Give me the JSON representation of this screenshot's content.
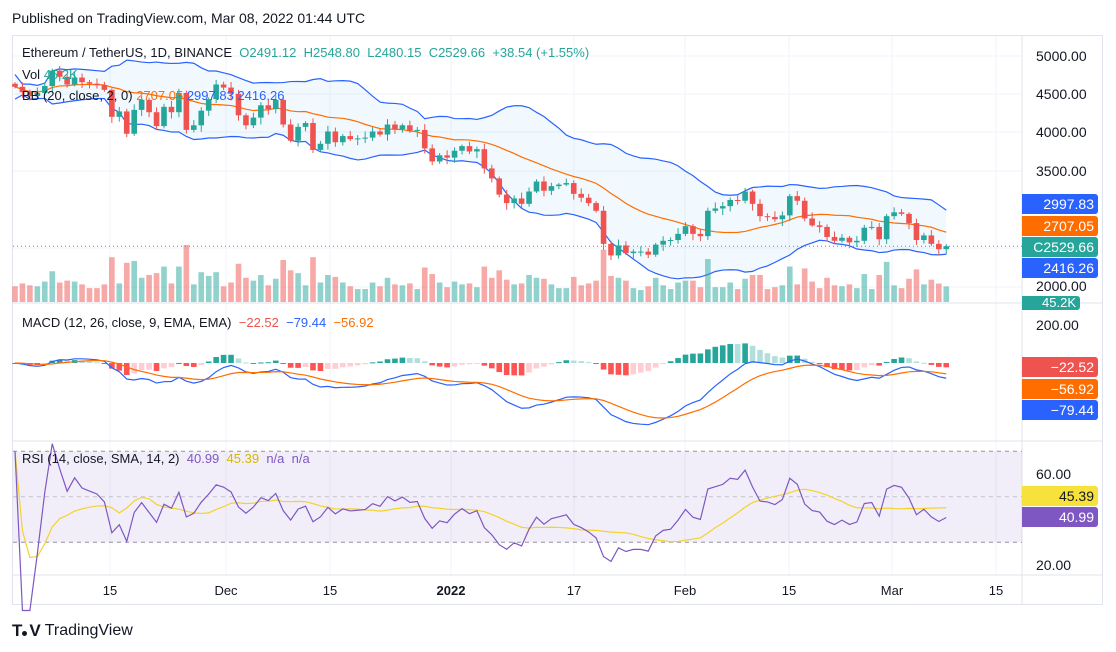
{
  "header": {
    "published": "Published on TradingView.com, Mar 08, 2022 01:44 UTC"
  },
  "footer": {
    "brand": "TradingView"
  },
  "chart_data": {
    "type": "candlestick",
    "symbol": "Ethereum / TetherUS, 1D, BINANCE",
    "ohlc_last": {
      "open": "O2491.12",
      "high": "H2548.80",
      "low": "L2480.15",
      "close": "C2529.66",
      "change": "+38.54 (+1.55%)"
    },
    "start_date": "2021-11-03",
    "closes": [
      4600,
      4530,
      4480,
      4520,
      4610,
      4810,
      4730,
      4630,
      4720,
      4660,
      4640,
      4620,
      4560,
      4210,
      4280,
      3990,
      4300,
      4430,
      4270,
      4090,
      4340,
      4270,
      4520,
      4040,
      4100,
      4290,
      4440,
      4630,
      4590,
      4510,
      4230,
      4100,
      4200,
      4360,
      4310,
      4430,
      4110,
      3900,
      4080,
      4130,
      3780,
      3860,
      4020,
      3880,
      3960,
      3920,
      3930,
      3940,
      4020,
      3980,
      4110,
      4050,
      4100,
      4030,
      4040,
      3800,
      3630,
      3710,
      3680,
      3770,
      3830,
      3760,
      3790,
      3540,
      3410,
      3200,
      3090,
      3150,
      3080,
      3240,
      3370,
      3250,
      3310,
      3330,
      3350,
      3210,
      3160,
      3090,
      2990,
      2560,
      2410,
      2540,
      2440,
      2460,
      2460,
      2420,
      2550,
      2600,
      2610,
      2690,
      2790,
      2690,
      2660,
      2990,
      3020,
      3050,
      3130,
      3120,
      3240,
      3080,
      2920,
      2910,
      2880,
      2930,
      3180,
      3120,
      2890,
      2800,
      2780,
      2650,
      2600,
      2640,
      2580,
      2600,
      2770,
      2780,
      2620,
      2920,
      2970,
      2950,
      2830,
      2610,
      2670,
      2560,
      2491.12,
      2529.66
    ],
    "volume": {
      "label": "Vol",
      "value": "45.2K"
    },
    "bb": {
      "label": "BB (20, close, 2, 0)",
      "basis": "2707.05",
      "upper": "2997.83",
      "lower": "2416.26"
    },
    "macd": {
      "label": "MACD (12, 26, close, 9, EMA, EMA)",
      "hist": "−22.52",
      "macd": "−79.44",
      "signal": "−56.92"
    },
    "rsi": {
      "label": "RSI (14, close, SMA, 14, 2)",
      "rsi": "40.99",
      "ma": "45.39",
      "na1": "n/a",
      "na2": "n/a"
    },
    "price_axis": [
      "5000.00",
      "4500.00",
      "4000.00",
      "3500.00",
      "2000.00"
    ],
    "macd_axis": [
      "200.00"
    ],
    "rsi_axis": [
      "60.00",
      "20.00"
    ],
    "time_axis": [
      "15",
      "Dec",
      "15",
      "2022",
      "17",
      "Feb",
      "15",
      "Mar",
      "15"
    ],
    "colors": {
      "up": "#26a69a",
      "down": "#ef5350",
      "bb_band": "#2962ff",
      "bb_basis": "#ff6d00",
      "rsi": "#7e57c2",
      "rsi_ma": "#f2d32b"
    }
  }
}
